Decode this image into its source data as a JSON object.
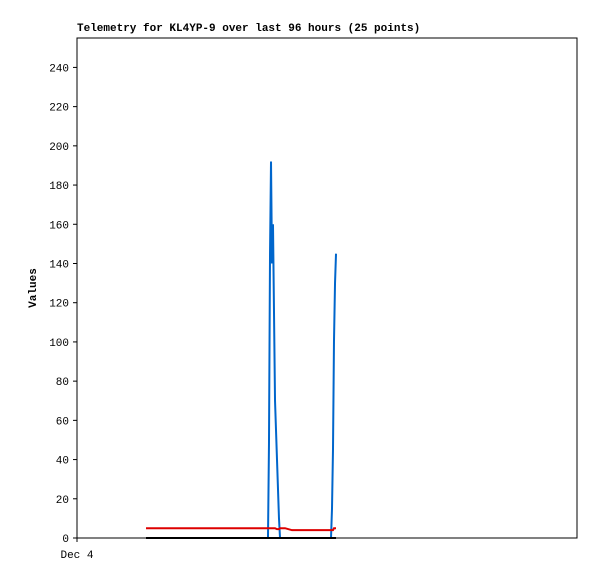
{
  "chart_data": {
    "type": "line",
    "title": "Telemetry for KL4YP-9 over last 96 hours (25 points)",
    "y_label": "Values",
    "x": [
      13.25,
      17.86,
      23.62,
      29.38,
      35.14,
      36.67,
      36.86,
      37.06,
      37.25,
      37.44,
      37.63,
      38.02,
      38.4,
      38.78,
      38.98,
      39.94,
      41.28,
      42.82,
      45.7,
      48.77,
      48.96,
      49.15,
      49.34,
      49.54,
      49.73
    ],
    "xlim": [
      0,
      96
    ],
    "xticks": [
      {
        "value": 0,
        "label": "Dec 4"
      }
    ],
    "ylim": [
      0,
      255
    ],
    "yticks": [
      0,
      20,
      40,
      60,
      80,
      100,
      120,
      140,
      160,
      180,
      200,
      220,
      240
    ],
    "series": [
      {
        "color": "#0066cc",
        "values": [
          0,
          0,
          0,
          0,
          0,
          0,
          48,
          145,
          192,
          140,
          160,
          70,
          40,
          10,
          0,
          0,
          0,
          0,
          0,
          0,
          15,
          45,
          100,
          130,
          145
        ]
      },
      {
        "color": "#dd0000",
        "values": [
          5,
          5,
          5,
          5,
          5,
          5,
          5,
          5,
          5,
          5,
          5,
          5,
          4.5,
          4.5,
          5,
          5,
          4,
          4,
          4,
          4,
          4,
          4,
          5,
          5,
          5
        ]
      },
      {
        "color": "#000000",
        "values": [
          0,
          0,
          0,
          0,
          0,
          0,
          0,
          0,
          0,
          0,
          0,
          0,
          0,
          0,
          0,
          0,
          0,
          0,
          0,
          0,
          0,
          0,
          0,
          0,
          0
        ]
      }
    ]
  }
}
